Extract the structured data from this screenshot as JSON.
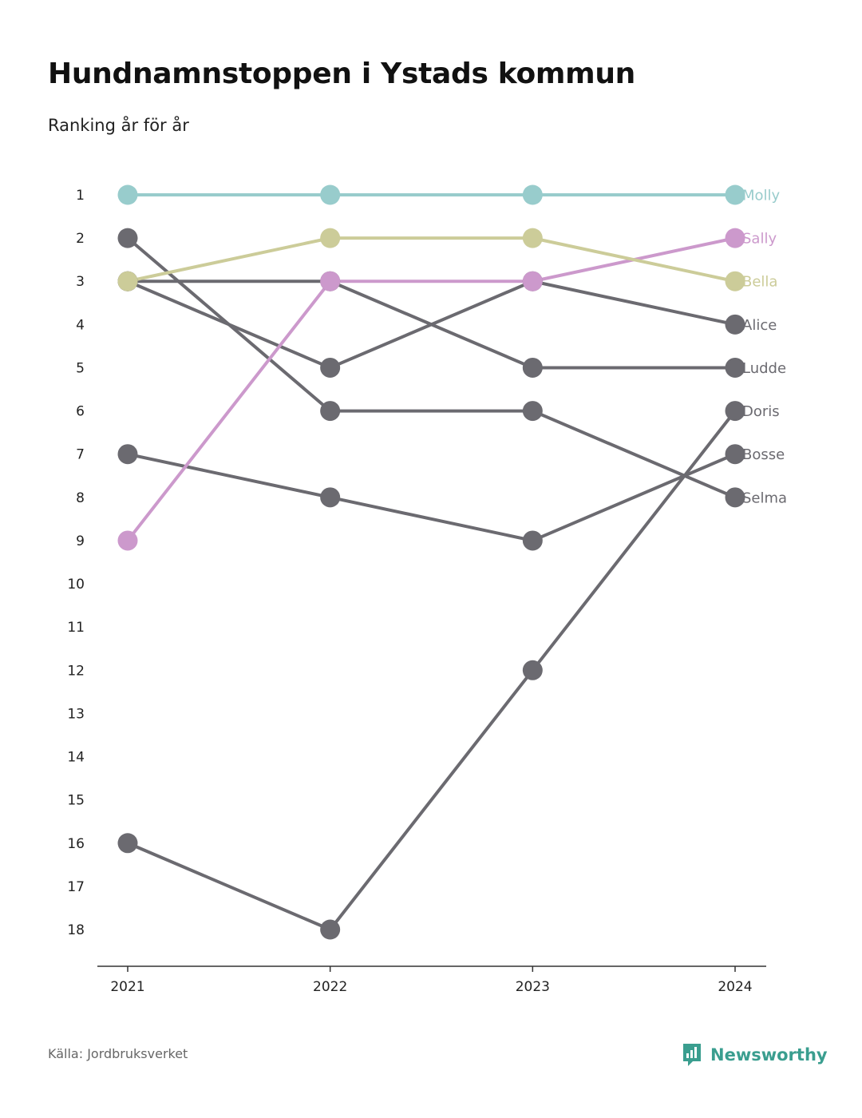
{
  "header": {
    "title": "Hundnamnstoppen i Ystads kommun",
    "subtitle": "Ranking år för år"
  },
  "footer": {
    "source": "Källa: Jordbruksverket",
    "brand": "Newsworthy"
  },
  "colors": {
    "default": "#6b6a70",
    "molly": "#98cccc",
    "sally": "#cc99cc",
    "bella": "#cccc99",
    "axis": "#333333",
    "brand": "#3a9e8f"
  },
  "chart_data": {
    "type": "line",
    "subtype": "bump",
    "x": [
      "2021",
      "2022",
      "2023",
      "2024"
    ],
    "y_ticks": [
      1,
      2,
      3,
      4,
      5,
      6,
      7,
      8,
      9,
      10,
      11,
      12,
      13,
      14,
      15,
      16,
      17,
      18
    ],
    "ylim": [
      1,
      18
    ],
    "y_inverted": true,
    "series": [
      {
        "name": "Molly",
        "values": [
          1,
          1,
          1,
          1
        ],
        "color": "#98cccc"
      },
      {
        "name": "Sally",
        "values": [
          9,
          3,
          3,
          2
        ],
        "color": "#cc99cc"
      },
      {
        "name": "Bella",
        "values": [
          3,
          2,
          2,
          3
        ],
        "color": "#cccc99"
      },
      {
        "name": "Alice",
        "values": [
          3,
          5,
          3,
          4
        ],
        "color": "#6b6a70"
      },
      {
        "name": "Ludde",
        "values": [
          3,
          3,
          5,
          5
        ],
        "color": "#6b6a70"
      },
      {
        "name": "Doris",
        "values": [
          16,
          18,
          12,
          6
        ],
        "color": "#6b6a70"
      },
      {
        "name": "Bosse",
        "values": [
          7,
          8,
          9,
          7
        ],
        "color": "#6b6a70"
      },
      {
        "name": "Selma",
        "values": [
          2,
          6,
          6,
          8
        ],
        "color": "#6b6a70"
      }
    ]
  }
}
